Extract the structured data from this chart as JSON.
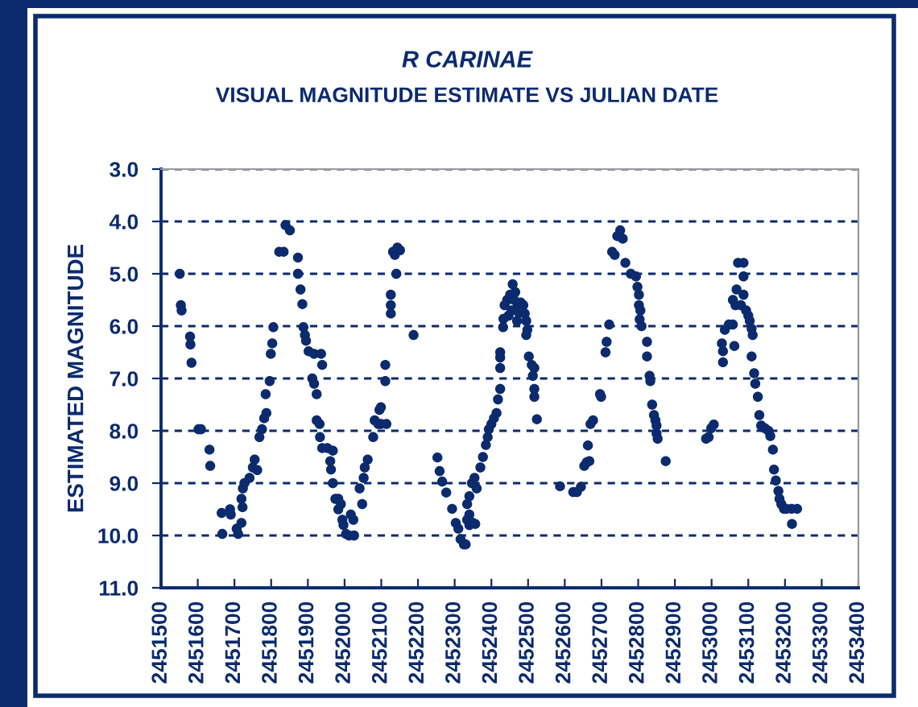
{
  "chart_data": {
    "type": "scatter",
    "title": "R CARINAE",
    "subtitle": "VISUAL MAGNITUDE ESTIMATE VS JULIAN DATE",
    "ylabel": "ESTIMATED MAGNITUDE",
    "x": [
      2451551,
      2451554,
      2451556,
      2451579,
      2451580,
      2451583,
      2451602,
      2451609,
      2451632,
      2451634,
      2451665,
      2451667,
      2451688,
      2451690,
      2451706,
      2451710,
      2451719,
      2451719,
      2451722,
      2451723,
      2451727,
      2451741,
      2451750,
      2451755,
      2451762,
      2451768,
      2451775,
      2451781,
      2451787,
      2451785,
      2451796,
      2451799,
      2451803,
      2451806,
      2451822,
      2451834,
      2451839,
      2451851,
      2451873,
      2451873,
      2451880,
      2451885,
      2451888,
      2451892,
      2451895,
      2451902,
      2451917,
      2451912,
      2451917,
      2451924,
      2451924,
      2451932,
      2451933,
      2451936,
      2451939,
      2451939,
      2451953,
      2451961,
      2451963,
      2451968,
      2451968,
      2451975,
      2451983,
      2451983,
      2451990,
      2451994,
      2451997,
      2452004,
      2452012,
      2452026,
      2452017,
      2452024,
      2452041,
      2452048,
      2452052,
      2452055,
      2452063,
      2452078,
      2452082,
      2452092,
      2452099,
      2452114,
      2452095,
      2452099,
      2452111,
      2452111,
      2452126,
      2452126,
      2452126,
      2452132,
      2452137,
      2452144,
      2452151,
      2452141,
      2452188,
      2452253,
      2452259,
      2452266,
      2452277,
      2452293,
      2452303,
      2452310,
      2452316,
      2452325,
      2452330,
      2452334,
      2452340,
      2452347,
      2452356,
      2452340,
      2452334,
      2452340,
      2452347,
      2452360,
      2452354,
      2452370,
      2452377,
      2452385,
      2452390,
      2452393,
      2452400,
      2452407,
      2452414,
      2452418,
      2452424,
      2452424,
      2452424,
      2452424,
      2452432,
      2452433,
      2452436,
      2452443,
      2452451,
      2452458,
      2452465,
      2452472,
      2452480,
      2452487,
      2452491,
      2452495,
      2452498,
      2452495,
      2452447,
      2452455,
      2452462,
      2452470,
      2452476,
      2452502,
      2452510,
      2452517,
      2452513,
      2452517,
      2452517,
      2452524,
      2452587,
      2452623,
      2452633,
      2452644,
      2452653,
      2452660,
      2452667,
      2452663,
      2452670,
      2452677,
      2452696,
      2452699,
      2452711,
      2452714,
      2452721,
      2452729,
      2452736,
      2452743,
      2452751,
      2452758,
      2452765,
      2452780,
      2452794,
      2452798,
      2452802,
      2452802,
      2452806,
      2452804,
      2452809,
      2452824,
      2452824,
      2452831,
      2452833,
      2452838,
      2452843,
      2452847,
      2452850,
      2452850,
      2452853,
      2452875,
      2452985,
      2452992,
      2452999,
      2453006,
      2453028,
      2453031,
      2453031,
      2453036,
      2453047,
      2453058,
      2453062,
      2453058,
      2453065,
      2453068,
      2453072,
      2453087,
      2453087,
      2453087,
      2453080,
      2453094,
      2453100,
      2453104,
      2453109,
      2453112,
      2453109,
      2453116,
      2453119,
      2453126,
      2453130,
      2453135,
      2453145,
      2453155,
      2453160,
      2453167,
      2453170,
      2453175,
      2453182,
      2453185,
      2453190,
      2453197,
      2453204,
      2453218,
      2453233,
      2453219
    ],
    "values": [
      5.0,
      5.6,
      5.7,
      6.2,
      6.35,
      6.7,
      7.97,
      7.97,
      8.36,
      8.67,
      9.57,
      9.97,
      9.5,
      9.6,
      9.87,
      9.97,
      9.76,
      9.3,
      9.46,
      9.1,
      9.0,
      8.9,
      8.7,
      8.55,
      8.75,
      8.12,
      7.97,
      7.76,
      7.66,
      7.3,
      7.05,
      6.53,
      6.33,
      6.02,
      4.58,
      4.58,
      4.07,
      4.17,
      4.69,
      5.0,
      5.3,
      5.58,
      6.02,
      6.17,
      6.28,
      6.48,
      6.53,
      7.0,
      7.1,
      7.3,
      7.8,
      7.87,
      8.12,
      6.53,
      6.74,
      8.33,
      8.33,
      8.58,
      8.74,
      8.38,
      9.0,
      9.3,
      9.3,
      9.5,
      9.4,
      9.7,
      9.8,
      9.97,
      10.0,
      10.0,
      9.6,
      9.7,
      9.1,
      9.4,
      8.9,
      8.7,
      8.55,
      8.12,
      7.8,
      7.87,
      7.87,
      7.87,
      7.6,
      7.55,
      6.74,
      7.05,
      5.4,
      5.6,
      5.76,
      4.58,
      4.64,
      4.5,
      4.55,
      5.0,
      6.17,
      8.51,
      8.77,
      8.97,
      9.18,
      9.49,
      9.76,
      9.87,
      10.07,
      10.17,
      10.17,
      9.7,
      9.8,
      9.75,
      9.78,
      9.6,
      9.4,
      9.25,
      9.0,
      9.1,
      8.9,
      8.7,
      8.5,
      8.27,
      8.12,
      7.97,
      7.87,
      7.76,
      7.66,
      7.4,
      7.2,
      6.8,
      6.6,
      6.5,
      6.02,
      5.86,
      5.6,
      5.5,
      5.4,
      5.2,
      5.35,
      5.6,
      5.55,
      5.6,
      5.76,
      5.9,
      6.07,
      6.17,
      5.8,
      5.7,
      5.5,
      5.9,
      5.75,
      6.58,
      6.74,
      6.8,
      6.95,
      7.2,
      7.35,
      7.78,
      9.06,
      9.17,
      9.17,
      9.07,
      8.67,
      8.6,
      8.58,
      8.28,
      7.87,
      7.8,
      7.3,
      7.35,
      6.5,
      6.3,
      5.97,
      4.58,
      4.64,
      4.28,
      4.17,
      4.33,
      4.79,
      5.0,
      5.05,
      5.25,
      5.4,
      5.6,
      5.7,
      5.87,
      6.0,
      6.3,
      6.58,
      6.95,
      7.05,
      7.5,
      7.7,
      7.8,
      7.9,
      8.05,
      8.15,
      8.58,
      8.15,
      8.12,
      7.95,
      7.88,
      6.33,
      6.48,
      6.69,
      6.07,
      5.97,
      5.97,
      6.38,
      5.5,
      5.6,
      5.3,
      4.79,
      4.79,
      5.05,
      5.4,
      5.6,
      5.7,
      5.8,
      5.9,
      6.05,
      6.17,
      6.58,
      6.9,
      7.1,
      7.35,
      7.7,
      7.9,
      7.95,
      8.0,
      8.1,
      8.36,
      8.74,
      8.95,
      9.15,
      9.3,
      9.4,
      9.49,
      9.49,
      9.49,
      9.49,
      9.78
    ],
    "color": "#0b2b6e",
    "marker": "circle",
    "grid": "y",
    "xlim": [
      2451500,
      2453400
    ],
    "xticks": [
      2451500,
      2451600,
      2451700,
      2451800,
      2451900,
      2452000,
      2452100,
      2452200,
      2452300,
      2452400,
      2452500,
      2452600,
      2452700,
      2452800,
      2452900,
      2453000,
      2453100,
      2453200,
      2453300,
      2453400
    ],
    "ylim": [
      11,
      3
    ],
    "yticks": [
      {
        "value": 3,
        "label": "3.0"
      },
      {
        "value": 4,
        "label": "4.0"
      },
      {
        "value": 5,
        "label": "5.0"
      },
      {
        "value": 6,
        "label": "6.0"
      },
      {
        "value": 7,
        "label": "7.0"
      },
      {
        "value": 8,
        "label": "8.0"
      },
      {
        "value": 9,
        "label": "9.0"
      },
      {
        "value": 10,
        "label": "10.0"
      },
      {
        "value": 11,
        "label": "11.0"
      }
    ]
  }
}
